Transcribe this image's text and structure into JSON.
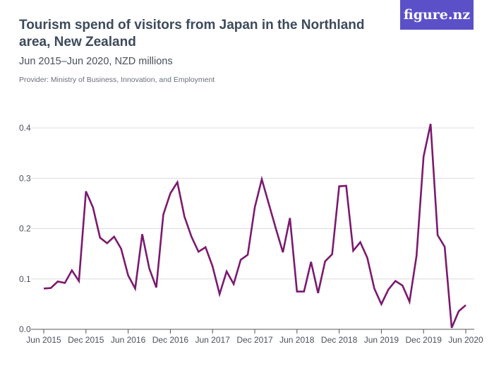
{
  "header": {
    "title": "Tourism spend of visitors from Japan in the Northland area, New Zealand",
    "subtitle": "Jun 2015–Jun 2020, NZD millions",
    "provider": "Provider: Ministry of Business, Innovation, and Employment",
    "logo": "figure.nz"
  },
  "chart_data": {
    "type": "line",
    "title": "Tourism spend of visitors from Japan in the Northland area, New Zealand",
    "subtitle": "Jun 2015–Jun 2020, NZD millions",
    "x_start": "Jun 2015",
    "x_end": "Jun 2020",
    "x_interval": "monthly",
    "ylim": [
      0,
      0.4
    ],
    "y_ticks": [
      "0.0",
      "0.1",
      "0.2",
      "0.3",
      "0.4"
    ],
    "x_ticks": [
      "Jun 2015",
      "Dec 2015",
      "Jun 2016",
      "Dec 2016",
      "Jun 2017",
      "Dec 2017",
      "Jun 2018",
      "Dec 2018",
      "Jun 2019",
      "Dec 2019",
      "Jun 2020"
    ],
    "grid": true,
    "line_color": "#7b1a6e",
    "values": [
      0.081,
      0.082,
      0.095,
      0.092,
      0.117,
      0.096,
      0.274,
      0.242,
      0.182,
      0.171,
      0.184,
      0.16,
      0.107,
      0.081,
      0.189,
      0.121,
      0.083,
      0.228,
      0.27,
      0.292,
      0.224,
      0.184,
      0.154,
      0.163,
      0.125,
      0.07,
      0.115,
      0.09,
      0.138,
      0.148,
      0.242,
      0.298,
      0.249,
      0.2,
      0.153,
      0.221,
      0.075,
      0.075,
      0.134,
      0.072,
      0.135,
      0.149,
      0.284,
      0.285,
      0.156,
      0.173,
      0.142,
      0.081,
      0.05,
      0.079,
      0.096,
      0.087,
      0.055,
      0.146,
      0.343,
      0.408,
      0.187,
      0.164,
      0.003,
      0.036,
      0.048
    ]
  }
}
